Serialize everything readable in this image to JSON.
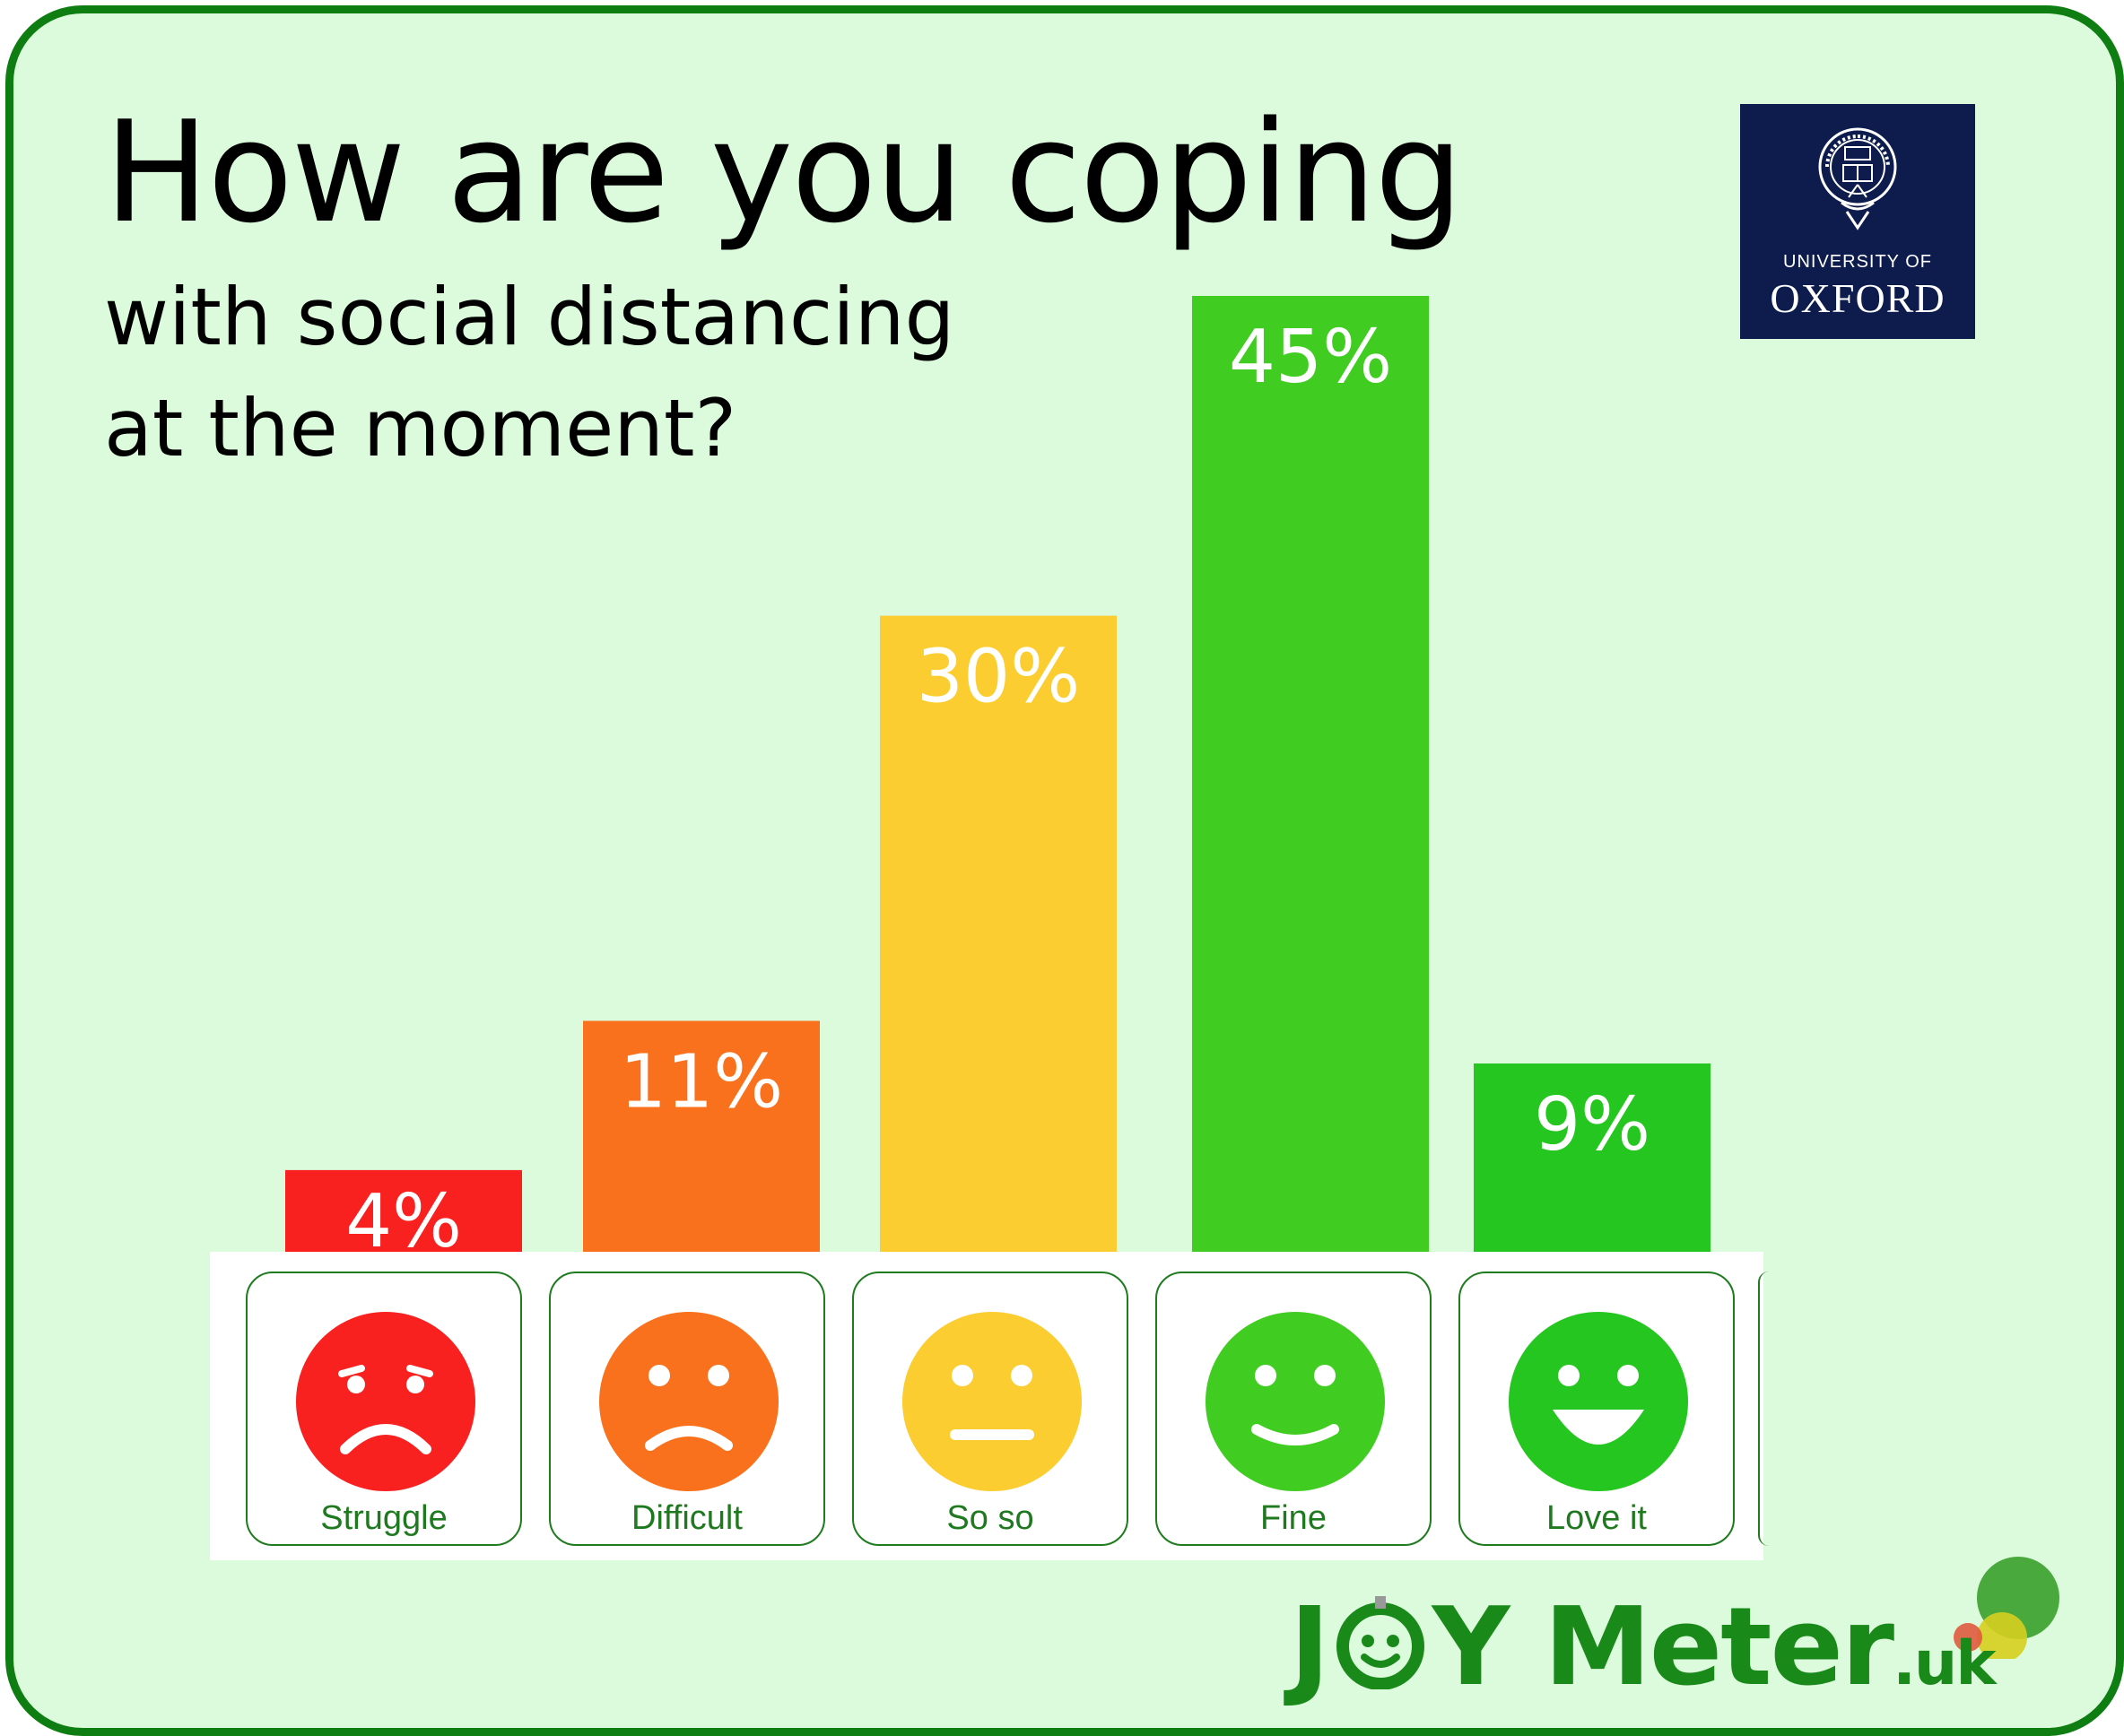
{
  "title": {
    "main": "How are you coping",
    "sub": "with social distancing\nat the moment?"
  },
  "logo": {
    "line1": "UNIVERSITY OF",
    "line2": "OXFORD",
    "crest_text": "UNIVERSITY · OF · OXFORD"
  },
  "colors": {
    "background": "#dcfadc",
    "border": "#0e7d12",
    "struggle": "#f92020",
    "difficult": "#f9711d",
    "so_so": "#fccd30",
    "fine": "#41cc22",
    "love_it": "#25c620",
    "label_text": "#1f7a1f"
  },
  "chart_data": {
    "type": "bar",
    "categories": [
      "Struggle",
      "Difficult",
      "So so",
      "Fine",
      "Love it"
    ],
    "values": [
      4,
      11,
      30,
      45,
      9
    ],
    "value_labels": [
      "4%",
      "11%",
      "30%",
      "45%",
      "9%"
    ],
    "colors": [
      "#f92020",
      "#f9711d",
      "#fccd30",
      "#41cc22",
      "#25c620"
    ],
    "ylim": [
      0,
      45
    ],
    "grid": false,
    "legend": "none"
  },
  "faces": [
    {
      "label": "Struggle",
      "icon": "very-sad-face-icon",
      "color": "#f92020"
    },
    {
      "label": "Difficult",
      "icon": "sad-face-icon",
      "color": "#f9711d"
    },
    {
      "label": "So so",
      "icon": "neutral-face-icon",
      "color": "#fccd30"
    },
    {
      "label": "Fine",
      "icon": "smiling-face-icon",
      "color": "#41cc22"
    },
    {
      "label": "Love it",
      "icon": "grinning-face-icon",
      "color": "#25c620"
    }
  ],
  "footer_logo": {
    "part1": "J",
    "part2": "Y",
    "part3": "Meter",
    "suffix": ".uk"
  }
}
